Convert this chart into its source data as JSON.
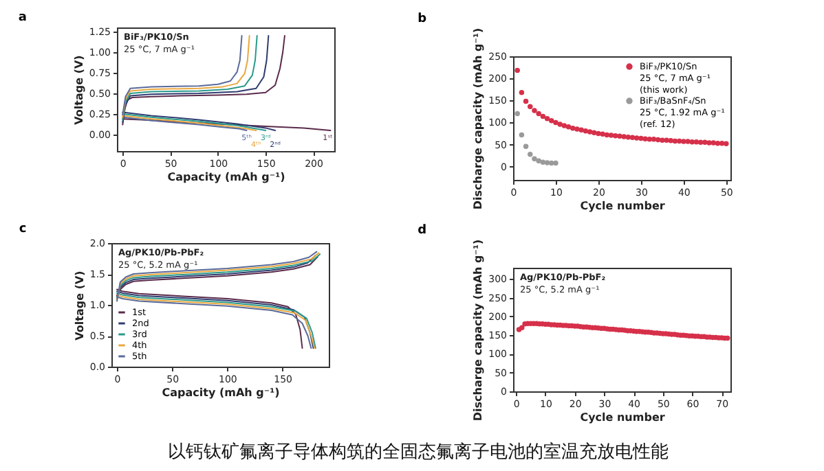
{
  "chart_data": [
    {
      "type": "line",
      "title": "a",
      "xlabel": "Capacity (mAh g⁻¹)",
      "ylabel": "Voltage (V)",
      "xlim": [
        -6,
        222
      ],
      "ylim": [
        -0.2,
        1.3
      ],
      "xticks": [
        0,
        50,
        100,
        150,
        200
      ],
      "yticks": [
        {
          "value": 0,
          "label": "0.00"
        },
        {
          "value": 0.25,
          "label": "0.25"
        },
        {
          "value": 0.5,
          "label": "0.50"
        },
        {
          "value": 0.75,
          "label": "0.75"
        },
        {
          "value": 1,
          "label": "1.00"
        },
        {
          "value": 1.25,
          "label": "1.25"
        }
      ],
      "legend": false,
      "annotations": [
        "BiF₃/PK10/Sn",
        "25 °C,  7 mA g⁻¹"
      ],
      "series": [
        {
          "name": "1ˢᵗ",
          "color": "#5a2a4a",
          "x": [
            0,
            20,
            50,
            100,
            150,
            190,
            218
          ],
          "values": [
            0.19,
            0.18,
            0.16,
            0.13,
            0.1,
            0.08,
            0.05
          ]
        },
        {
          "name": "2ⁿᵈ",
          "color": "#2e3b70",
          "x": [
            0,
            30,
            80,
            120,
            150,
            160
          ],
          "values": [
            0.27,
            0.23,
            0.18,
            0.13,
            0.08,
            0.05
          ]
        },
        {
          "name": "3ʳᵈ",
          "color": "#2a9a8a",
          "x": [
            0,
            30,
            80,
            120,
            140,
            150
          ],
          "values": [
            0.25,
            0.21,
            0.16,
            0.11,
            0.07,
            0.05
          ]
        },
        {
          "name": "4ᵗʰ",
          "color": "#e8a840",
          "x": [
            0,
            30,
            80,
            110,
            130,
            140
          ],
          "values": [
            0.23,
            0.19,
            0.14,
            0.1,
            0.07,
            0.05
          ]
        },
        {
          "name": "5ᵗʰ",
          "color": "#5a6a9a",
          "x": [
            0,
            30,
            80,
            105,
            122,
            130
          ],
          "values": [
            0.21,
            0.17,
            0.12,
            0.09,
            0.07,
            0.05
          ]
        },
        {
          "color": "#5a2a4a",
          "x": [
            0,
            2,
            5,
            10,
            30,
            60,
            100,
            130,
            150,
            160,
            165,
            168,
            170
          ],
          "values": [
            0.12,
            0.3,
            0.42,
            0.45,
            0.46,
            0.47,
            0.48,
            0.49,
            0.51,
            0.6,
            0.8,
            1.0,
            1.2
          ]
        },
        {
          "color": "#2e3b70",
          "x": [
            0,
            3,
            8,
            30,
            80,
            120,
            140,
            148,
            151,
            153
          ],
          "values": [
            0.15,
            0.36,
            0.47,
            0.49,
            0.5,
            0.52,
            0.56,
            0.7,
            0.9,
            1.2
          ]
        },
        {
          "color": "#2a9a8a",
          "x": [
            0,
            3,
            8,
            30,
            80,
            110,
            128,
            136,
            139,
            141
          ],
          "values": [
            0.18,
            0.4,
            0.5,
            0.52,
            0.53,
            0.55,
            0.59,
            0.72,
            0.9,
            1.2
          ]
        },
        {
          "color": "#e8a840",
          "x": [
            0,
            3,
            8,
            30,
            80,
            105,
            120,
            128,
            131,
            133
          ],
          "values": [
            0.21,
            0.43,
            0.53,
            0.55,
            0.56,
            0.58,
            0.62,
            0.74,
            0.9,
            1.2
          ]
        },
        {
          "color": "#5a6a9a",
          "x": [
            0,
            3,
            8,
            30,
            80,
            100,
            113,
            120,
            123,
            125
          ],
          "values": [
            0.24,
            0.46,
            0.56,
            0.58,
            0.59,
            0.61,
            0.65,
            0.76,
            0.9,
            1.2
          ]
        }
      ]
    },
    {
      "type": "scatter",
      "title": "b",
      "xlabel": "Cycle number",
      "ylabel": "Discharge capacity (mAh g⁻¹)",
      "xlim": [
        0,
        51
      ],
      "ylim": [
        -30,
        250
      ],
      "xticks": [
        0,
        10,
        20,
        30,
        40,
        50
      ],
      "yticks": [
        0,
        50,
        100,
        150,
        200,
        250
      ],
      "legend": "top right",
      "marker": "circle",
      "series": [
        {
          "name": "BiF₃/PK10/Sn\n25 °C, 7 mA g⁻¹\n(this work)",
          "color": "#d6304a",
          "x": [
            1,
            2,
            3,
            4,
            5,
            6,
            7,
            8,
            9,
            10,
            11,
            12,
            13,
            14,
            15,
            16,
            17,
            18,
            19,
            20,
            21,
            22,
            23,
            24,
            25,
            26,
            27,
            28,
            29,
            30,
            31,
            32,
            33,
            34,
            35,
            36,
            37,
            38,
            39,
            40,
            41,
            42,
            43,
            44,
            45,
            46,
            47,
            48,
            49,
            50
          ],
          "values": [
            218,
            168,
            148,
            136,
            127,
            120,
            114,
            109,
            104,
            100,
            96,
            93,
            90,
            87,
            85,
            83,
            81,
            79,
            77,
            75,
            74,
            72,
            71,
            70,
            69,
            68,
            67,
            66,
            65,
            64,
            63,
            62,
            62,
            61,
            60,
            60,
            59,
            58,
            58,
            57,
            57,
            56,
            56,
            55,
            55,
            54,
            54,
            53,
            53,
            52
          ]
        },
        {
          "name": "BiF₃/BaSnF₄/Sn\n25 °C, 1.92 mA g⁻¹\n(ref. 12)",
          "color": "#9a9a9a",
          "x": [
            1,
            2,
            3,
            4,
            5,
            6,
            7,
            8,
            9,
            10
          ],
          "values": [
            120,
            72,
            46,
            28,
            18,
            13,
            10,
            9,
            8,
            8
          ]
        }
      ]
    },
    {
      "type": "line",
      "title": "c",
      "xlabel": "Capacity (mAh g⁻¹)",
      "ylabel": "Voltage (V)",
      "xlim": [
        -5,
        192
      ],
      "ylim": [
        0,
        2
      ],
      "xticks": [
        0,
        50,
        100,
        150
      ],
      "yticks": [
        {
          "value": 0,
          "label": "0.0"
        },
        {
          "value": 0.5,
          "label": "0.5"
        },
        {
          "value": 1,
          "label": "1.0"
        },
        {
          "value": 1.5,
          "label": "1.5"
        },
        {
          "value": 2,
          "label": "2.0"
        }
      ],
      "legend": "bottom left",
      "annotations": [
        "Ag/PK10/Pb-PbF₂",
        "25 °C,   5.2 mA g⁻¹"
      ],
      "series": [
        {
          "name": "1st",
          "color": "#5a2a4a",
          "x": [
            0,
            5,
            20,
            60,
            100,
            140,
            155,
            162,
            166,
            168
          ],
          "values": [
            1.25,
            1.22,
            1.18,
            1.14,
            1.1,
            1.03,
            0.97,
            0.85,
            0.6,
            0.3
          ]
        },
        {
          "name": "2nd",
          "color": "#2e3b70",
          "x": [
            0,
            5,
            20,
            60,
            100,
            140,
            160,
            170,
            175,
            178
          ],
          "values": [
            1.22,
            1.19,
            1.15,
            1.11,
            1.07,
            1.0,
            0.92,
            0.8,
            0.55,
            0.3
          ]
        },
        {
          "name": "3rd",
          "color": "#2a9a8a",
          "x": [
            0,
            5,
            20,
            60,
            100,
            140,
            162,
            172,
            177,
            180
          ],
          "values": [
            1.19,
            1.16,
            1.12,
            1.08,
            1.04,
            0.97,
            0.9,
            0.78,
            0.55,
            0.3
          ]
        },
        {
          "name": "4th",
          "color": "#e8a840",
          "x": [
            0,
            5,
            20,
            60,
            100,
            140,
            161,
            171,
            176,
            179
          ],
          "values": [
            1.16,
            1.13,
            1.09,
            1.05,
            1.01,
            0.94,
            0.87,
            0.75,
            0.5,
            0.3
          ]
        },
        {
          "name": "5th",
          "color": "#5a6a9a",
          "x": [
            0,
            5,
            20,
            60,
            100,
            140,
            159,
            168,
            173,
            176
          ],
          "values": [
            1.13,
            1.1,
            1.06,
            1.02,
            0.98,
            0.91,
            0.84,
            0.7,
            0.5,
            0.3
          ]
        },
        {
          "color": "#5a2a4a",
          "x": [
            0,
            3,
            8,
            15,
            30,
            60,
            100,
            140,
            160,
            175,
            182
          ],
          "values": [
            1.15,
            1.25,
            1.33,
            1.38,
            1.4,
            1.43,
            1.47,
            1.53,
            1.58,
            1.65,
            1.78
          ]
        },
        {
          "color": "#2e3b70",
          "x": [
            0,
            3,
            8,
            15,
            30,
            60,
            100,
            140,
            160,
            173,
            180
          ],
          "values": [
            1.12,
            1.28,
            1.36,
            1.41,
            1.43,
            1.46,
            1.5,
            1.56,
            1.61,
            1.68,
            1.8
          ]
        },
        {
          "color": "#2a9a8a",
          "x": [
            0,
            3,
            8,
            15,
            30,
            60,
            100,
            140,
            160,
            177,
            184
          ],
          "values": [
            1.1,
            1.31,
            1.39,
            1.44,
            1.46,
            1.49,
            1.53,
            1.59,
            1.64,
            1.71,
            1.82
          ]
        },
        {
          "color": "#e8a840",
          "x": [
            0,
            3,
            8,
            15,
            30,
            60,
            100,
            140,
            160,
            176,
            183
          ],
          "values": [
            1.08,
            1.34,
            1.42,
            1.47,
            1.49,
            1.52,
            1.56,
            1.62,
            1.67,
            1.74,
            1.84
          ]
        },
        {
          "color": "#5a6a9a",
          "x": [
            0,
            3,
            8,
            15,
            30,
            60,
            100,
            140,
            160,
            174,
            181
          ],
          "values": [
            1.06,
            1.37,
            1.45,
            1.5,
            1.52,
            1.55,
            1.59,
            1.65,
            1.7,
            1.77,
            1.86
          ]
        }
      ]
    },
    {
      "type": "scatter",
      "title": "d",
      "xlabel": "Cycle number",
      "ylabel": "Discharge capacity (mAh g⁻¹)",
      "xlim": [
        -1,
        73
      ],
      "ylim": [
        0,
        330
      ],
      "xticks": [
        0,
        10,
        20,
        30,
        40,
        50,
        60,
        70
      ],
      "yticks": [
        0,
        50,
        100,
        150,
        200,
        250,
        300
      ],
      "marker": "circle",
      "annotations": [
        "Ag/PK10/Pb-PbF₂",
        "25 °C,   5.2 mA g⁻¹"
      ],
      "series": [
        {
          "color": "#d6304a",
          "x": [
            1,
            2,
            3,
            4,
            5,
            6,
            7,
            8,
            9,
            10,
            11,
            12,
            13,
            14,
            15,
            16,
            17,
            18,
            19,
            20,
            21,
            22,
            23,
            24,
            25,
            26,
            27,
            28,
            29,
            30,
            31,
            32,
            33,
            34,
            35,
            36,
            37,
            38,
            39,
            40,
            41,
            42,
            43,
            44,
            45,
            46,
            47,
            48,
            49,
            50,
            51,
            52,
            53,
            54,
            55,
            56,
            57,
            58,
            59,
            60,
            61,
            62,
            63,
            64,
            65,
            66,
            67,
            68,
            69,
            70,
            71,
            72
          ],
          "values": [
            165,
            170,
            180,
            181,
            181,
            181,
            181,
            180,
            180,
            179,
            179,
            178,
            178,
            177,
            177,
            176,
            176,
            175,
            175,
            174,
            174,
            173,
            172,
            172,
            171,
            170,
            170,
            169,
            168,
            168,
            167,
            166,
            166,
            165,
            164,
            164,
            163,
            162,
            162,
            161,
            160,
            160,
            159,
            158,
            158,
            157,
            156,
            156,
            155,
            154,
            154,
            153,
            152,
            152,
            151,
            150,
            150,
            149,
            148,
            148,
            147,
            147,
            146,
            146,
            145,
            145,
            144,
            144,
            143,
            143,
            142,
            142
          ]
        }
      ]
    },
    {
      "type": "other",
      "annotations": [
        "以钙钛矿氟离子导体构筑的全固态氟离子电池的室温充放电性能"
      ]
    }
  ]
}
